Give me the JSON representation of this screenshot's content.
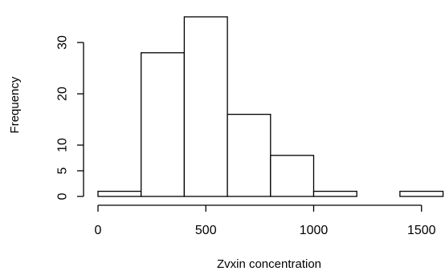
{
  "chart_data": {
    "type": "bar",
    "subtype": "histogram",
    "title": "",
    "xlabel": "Zvxin concentration",
    "ylabel": "Frequency",
    "bins": [
      {
        "start": 0,
        "end": 200,
        "count": 1
      },
      {
        "start": 200,
        "end": 400,
        "count": 28
      },
      {
        "start": 400,
        "end": 600,
        "count": 35
      },
      {
        "start": 600,
        "end": 800,
        "count": 16
      },
      {
        "start": 800,
        "end": 1000,
        "count": 8
      },
      {
        "start": 1000,
        "end": 1200,
        "count": 1
      },
      {
        "start": 1200,
        "end": 1400,
        "count": 0
      },
      {
        "start": 1400,
        "end": 1600,
        "count": 1
      }
    ],
    "x_ticks": [
      0,
      500,
      1000,
      1500
    ],
    "x_tick_labels": [
      "0",
      "500",
      "1000",
      "1500"
    ],
    "y_ticks": [
      0,
      5,
      10,
      20,
      30
    ],
    "y_tick_labels": [
      "0",
      "5",
      "10",
      "20",
      "30"
    ],
    "xlim": [
      0,
      1600
    ],
    "ylim": [
      0,
      35
    ],
    "grid": false,
    "legend": "none",
    "bar_fill": "#ffffff",
    "bar_stroke": "#000000"
  }
}
